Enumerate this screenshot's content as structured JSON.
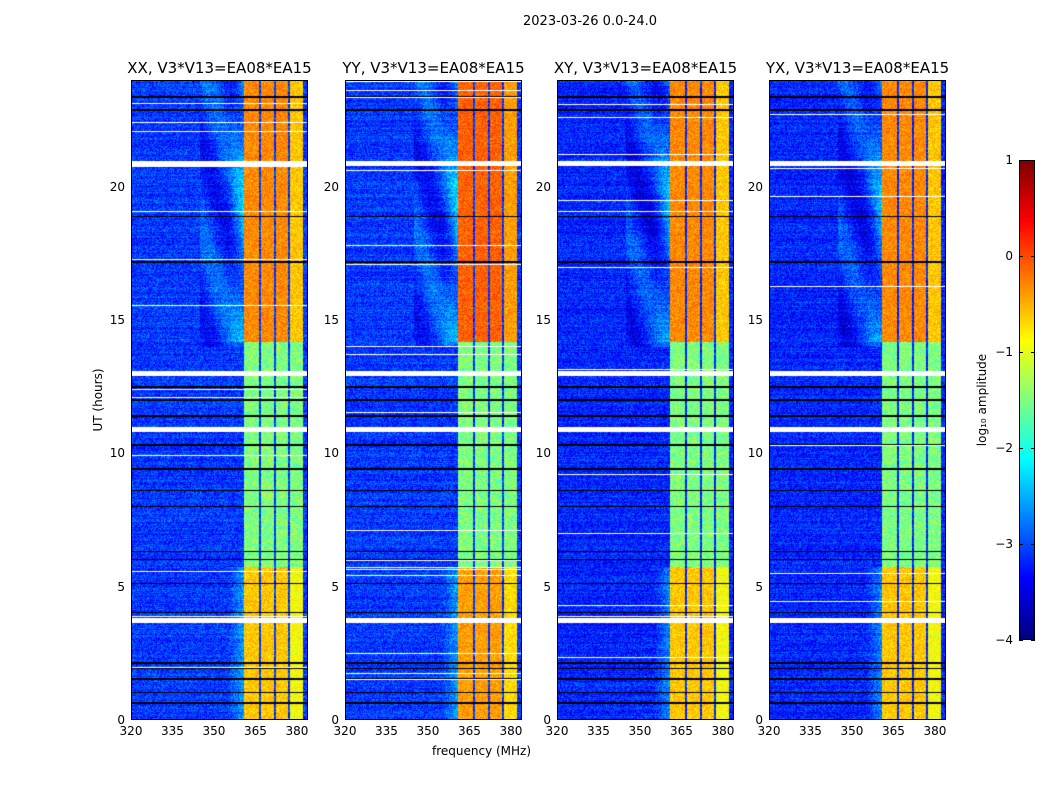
{
  "suptitle": "2023-03-26 0.0-24.0",
  "chart_data": {
    "type": "heatmap",
    "panels": [
      {
        "title": "XX, V3*V13=EA08*EA15"
      },
      {
        "title": "YY, V3*V13=EA08*EA15"
      },
      {
        "title": "XY, V3*V13=EA08*EA15"
      },
      {
        "title": "YX, V3*V13=EA08*EA15"
      }
    ],
    "xlabel": "frequency (MHz)",
    "ylabel": "UT (hours)",
    "xlim": [
      320,
      384
    ],
    "ylim": [
      0,
      24
    ],
    "xticks": [
      "320",
      "335",
      "350",
      "365",
      "380"
    ],
    "xtick_values": [
      320,
      335,
      350,
      365,
      380
    ],
    "yticks": [
      "0",
      "5",
      "10",
      "15",
      "20"
    ],
    "ytick_values": [
      0,
      5,
      10,
      15,
      20
    ],
    "background_log_amplitude": -3.1,
    "rfi_subbands_mhz": [
      [
        361,
        366.5
      ],
      [
        367.2,
        372
      ],
      [
        372.6,
        377
      ],
      [
        377.8,
        382.5
      ]
    ],
    "rfi_log_amplitude_by_time": [
      {
        "hours": [
          0,
          5.7
        ],
        "level": -0.6
      },
      {
        "hours": [
          5.7,
          14.2
        ],
        "level": -1.5
      },
      {
        "hours": [
          14.2,
          24
        ],
        "level": -0.3
      }
    ],
    "flagged_hours": [
      [
        3.6,
        3.8
      ],
      [
        10.8,
        11.0
      ],
      [
        12.9,
        13.1
      ],
      [
        20.8,
        21.0
      ]
    ],
    "colorbar": {
      "label": "log₁₀ amplitude",
      "clim": [
        -4,
        1
      ],
      "ticks": [
        "1",
        "0",
        "−1",
        "−2",
        "−3",
        "−4"
      ],
      "tick_values": [
        1,
        0,
        -1,
        -2,
        -3,
        -4
      ],
      "colormap": "jet"
    }
  }
}
